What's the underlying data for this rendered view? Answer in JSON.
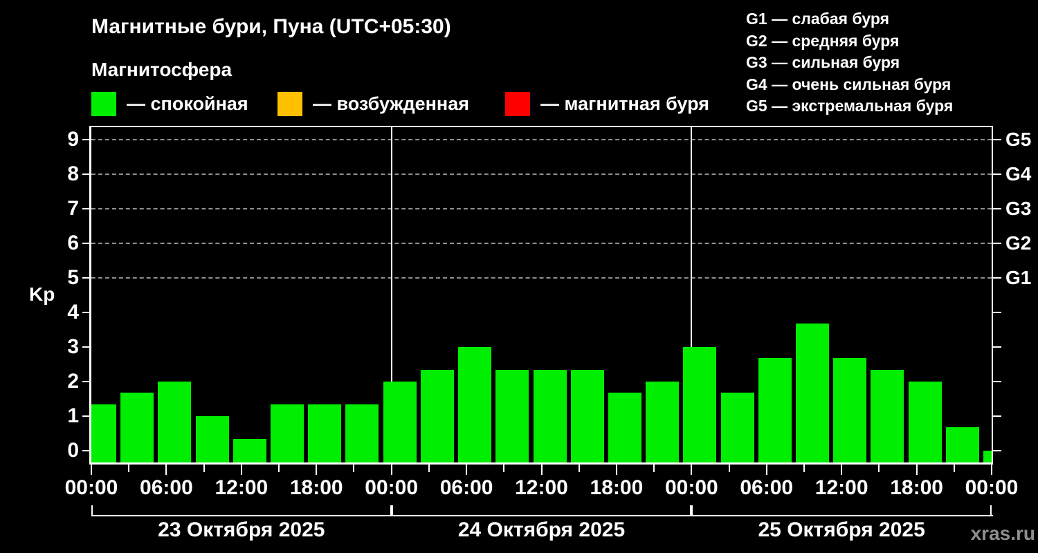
{
  "header": {
    "title": "Магнитные бури, Пуна (UTC+05:30)",
    "subtitle": "Магнитосфера",
    "legend": [
      {
        "name": "quiet",
        "label": "— спокойная",
        "color": "#00ee00"
      },
      {
        "name": "excited",
        "label": "— возбужденная",
        "color": "#ffc000"
      },
      {
        "name": "storm",
        "label": "— магнитная буря",
        "color": "#ff0000"
      }
    ],
    "storm_scale": [
      "G1 — слабая буря",
      "G2 — средняя буря",
      "G3 — сильная буря",
      "G4 — очень сильная буря",
      "G5 — экстремальная буря"
    ]
  },
  "chart_data": {
    "type": "bar",
    "title": "Магнитные бури, Пуна (UTC+05:30)",
    "ylabel": "Kp",
    "ylim": [
      -0.35,
      9.37
    ],
    "bar_color": "#00ee00",
    "grid_color": "#909090",
    "step_hours": 3,
    "x_axis": {
      "total_hours": 72,
      "minor_step": 3,
      "major_step": 6
    },
    "y_ticks": [
      0,
      1,
      2,
      3,
      4,
      5,
      6,
      7,
      8,
      9
    ],
    "gridline_values": [
      5,
      6,
      7,
      8,
      9
    ],
    "right_axis_labels": [
      {
        "value": 9,
        "label": "G5"
      },
      {
        "value": 8,
        "label": "G4"
      },
      {
        "value": 7,
        "label": "G3"
      },
      {
        "value": 6,
        "label": "G2"
      },
      {
        "value": 5,
        "label": "G1"
      }
    ],
    "day_boundary_hours": [
      24,
      48
    ],
    "values": [
      1.33,
      1.67,
      2.0,
      1.0,
      0.33,
      1.33,
      1.33,
      1.33,
      2.0,
      2.33,
      3.0,
      2.33,
      2.33,
      2.33,
      1.67,
      2.0,
      3.0,
      1.67,
      2.67,
      3.67,
      2.67,
      2.33,
      2.0,
      0.67,
      0.0
    ],
    "time_tick_labels": [
      {
        "hour": 0,
        "label": "00:00"
      },
      {
        "hour": 6,
        "label": "06:00"
      },
      {
        "hour": 12,
        "label": "12:00"
      },
      {
        "hour": 18,
        "label": "18:00"
      },
      {
        "hour": 24,
        "label": "00:00"
      },
      {
        "hour": 30,
        "label": "06:00"
      },
      {
        "hour": 36,
        "label": "12:00"
      },
      {
        "hour": 42,
        "label": "18:00"
      },
      {
        "hour": 48,
        "label": "00:00"
      },
      {
        "hour": 54,
        "label": "06:00"
      },
      {
        "hour": 60,
        "label": "12:00"
      },
      {
        "hour": 66,
        "label": "18:00"
      },
      {
        "hour": 72,
        "label": "00:00"
      }
    ],
    "day_labels": [
      {
        "label": "23 Октября 2025",
        "start_hour": 0,
        "end_hour": 24
      },
      {
        "label": "24 Октября 2025",
        "start_hour": 24,
        "end_hour": 48
      },
      {
        "label": "25 Октября 2025",
        "start_hour": 48,
        "end_hour": 72
      }
    ]
  },
  "watermark": "xras.ru"
}
